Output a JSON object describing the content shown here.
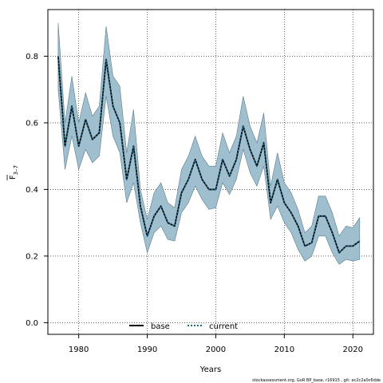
{
  "chart_data": {
    "type": "line",
    "xlabel": "Years",
    "ylabel": "F",
    "ylabel_sub": "3–7",
    "xlim": [
      1975.5,
      2023.0
    ],
    "ylim": [
      -0.035,
      0.94
    ],
    "xticks": [
      1980,
      1990,
      2000,
      2010,
      2020
    ],
    "yticks": [
      0.0,
      0.2,
      0.4,
      0.6,
      0.8
    ],
    "xtick_labels": [
      "1980",
      "1990",
      "2000",
      "2010",
      "2020"
    ],
    "ytick_labels": [
      "0.0",
      "0.2",
      "0.4",
      "0.6",
      "0.8"
    ],
    "grid": true,
    "legend_position": "bottom-center",
    "band": {
      "x": [
        1977,
        1978,
        1979,
        1980,
        1981,
        1982,
        1983,
        1984,
        1985,
        1986,
        1987,
        1988,
        1989,
        1990,
        1991,
        1992,
        1993,
        1994,
        1995,
        1996,
        1997,
        1998,
        1999,
        2000,
        2001,
        2002,
        2003,
        2004,
        2005,
        2006,
        2007,
        2008,
        2009,
        2010,
        2011,
        2012,
        2013,
        2014,
        2015,
        2016,
        2017,
        2018,
        2019,
        2020,
        2021
      ],
      "lower": [
        0.7,
        0.46,
        0.56,
        0.46,
        0.52,
        0.48,
        0.5,
        0.68,
        0.56,
        0.51,
        0.36,
        0.42,
        0.3,
        0.21,
        0.27,
        0.29,
        0.25,
        0.245,
        0.33,
        0.36,
        0.41,
        0.37,
        0.34,
        0.345,
        0.42,
        0.385,
        0.43,
        0.52,
        0.45,
        0.41,
        0.47,
        0.31,
        0.35,
        0.3,
        0.27,
        0.22,
        0.185,
        0.2,
        0.26,
        0.26,
        0.21,
        0.175,
        0.19,
        0.185,
        0.19
      ],
      "upper": [
        0.9,
        0.6,
        0.74,
        0.6,
        0.69,
        0.62,
        0.65,
        0.89,
        0.74,
        0.71,
        0.51,
        0.64,
        0.4,
        0.31,
        0.39,
        0.42,
        0.36,
        0.345,
        0.46,
        0.5,
        0.56,
        0.5,
        0.47,
        0.47,
        0.57,
        0.51,
        0.56,
        0.68,
        0.59,
        0.54,
        0.63,
        0.41,
        0.51,
        0.42,
        0.39,
        0.34,
        0.27,
        0.29,
        0.38,
        0.38,
        0.33,
        0.26,
        0.29,
        0.285,
        0.315
      ]
    },
    "series": [
      {
        "name": "base",
        "style": "solid",
        "color": "#000000",
        "x": [
          1977,
          1978,
          1979,
          1980,
          1981,
          1982,
          1983,
          1984,
          1985,
          1986,
          1987,
          1988,
          1989,
          1990,
          1991,
          1992,
          1993,
          1994,
          1995,
          1996,
          1997,
          1998,
          1999,
          2000,
          2001,
          2002,
          2003,
          2004,
          2005,
          2006,
          2007,
          2008,
          2009,
          2010,
          2011,
          2012,
          2013,
          2014,
          2015,
          2016,
          2017,
          2018,
          2019,
          2020,
          2021
        ],
        "values": [
          0.8,
          0.53,
          0.65,
          0.53,
          0.61,
          0.55,
          0.57,
          0.79,
          0.65,
          0.6,
          0.43,
          0.53,
          0.35,
          0.26,
          0.32,
          0.35,
          0.3,
          0.29,
          0.39,
          0.43,
          0.49,
          0.43,
          0.4,
          0.4,
          0.49,
          0.44,
          0.49,
          0.59,
          0.52,
          0.47,
          0.54,
          0.36,
          0.43,
          0.36,
          0.33,
          0.29,
          0.23,
          0.24,
          0.32,
          0.32,
          0.27,
          0.21,
          0.23,
          0.23,
          0.245
        ]
      },
      {
        "name": "current",
        "style": "dotted",
        "color": "#1f6a8a",
        "x": [
          1977,
          1978,
          1979,
          1980,
          1981,
          1982,
          1983,
          1984,
          1985,
          1986,
          1987,
          1988,
          1989,
          1990,
          1991,
          1992,
          1993,
          1994,
          1995,
          1996,
          1997,
          1998,
          1999,
          2000,
          2001,
          2002,
          2003,
          2004,
          2005,
          2006,
          2007,
          2008,
          2009,
          2010,
          2011,
          2012,
          2013,
          2014,
          2015,
          2016,
          2017,
          2018,
          2019,
          2020,
          2021
        ],
        "values": [
          0.8,
          0.53,
          0.65,
          0.53,
          0.61,
          0.55,
          0.57,
          0.79,
          0.65,
          0.6,
          0.43,
          0.53,
          0.35,
          0.26,
          0.32,
          0.35,
          0.3,
          0.29,
          0.39,
          0.43,
          0.49,
          0.43,
          0.4,
          0.4,
          0.49,
          0.44,
          0.49,
          0.59,
          0.52,
          0.47,
          0.54,
          0.36,
          0.43,
          0.36,
          0.33,
          0.29,
          0.23,
          0.24,
          0.32,
          0.32,
          0.27,
          0.21,
          0.23,
          0.23,
          0.245
        ]
      }
    ],
    "colors": {
      "band_fill": "#9fbfcf",
      "band_edge": "#5c7d8f",
      "grid": "#000000",
      "axis": "#000000"
    }
  },
  "footer": {
    "text": "stockassessment.org, GoR BP_base, r16915 , git: ec2c2a0c6dde"
  }
}
